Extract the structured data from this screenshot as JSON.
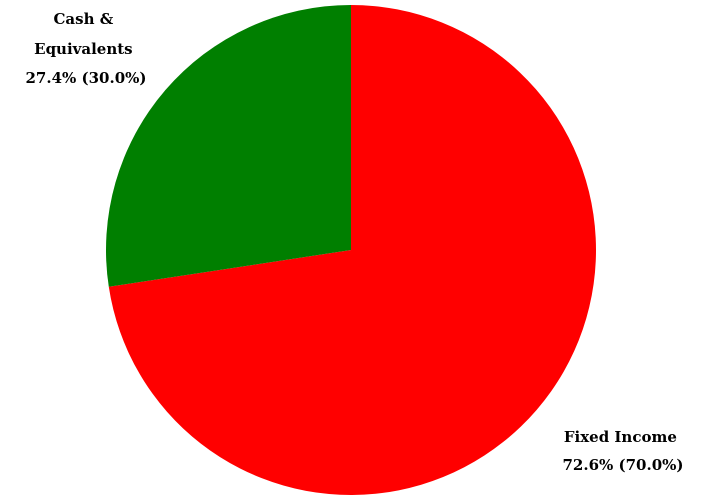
{
  "chart_data": {
    "type": "pie",
    "title": "",
    "slices": [
      {
        "name": "Fixed Income",
        "value": 72.6,
        "label_lines": [
          "Fixed Income",
          "72.6% (70.0%)"
        ],
        "color": "#ff0000"
      },
      {
        "name": "Cash & Equivalents",
        "value": 27.4,
        "label_lines": [
          "Cash &",
          "Equivalents",
          "27.4% (30.0%)"
        ],
        "color": "#007f00"
      }
    ],
    "start_angle": "12 o'clock",
    "direction": "clockwise",
    "legend": "none"
  }
}
